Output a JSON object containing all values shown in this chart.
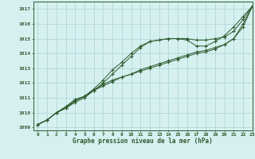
{
  "title": "Graphe pression niveau de la mer (hPa)",
  "xlim": [
    -0.5,
    23
  ],
  "ylim": [
    1008.8,
    1017.5
  ],
  "yticks": [
    1009,
    1010,
    1011,
    1012,
    1013,
    1014,
    1015,
    1016,
    1017
  ],
  "xticks": [
    0,
    1,
    2,
    3,
    4,
    5,
    6,
    7,
    8,
    9,
    10,
    11,
    12,
    13,
    14,
    15,
    16,
    17,
    18,
    19,
    20,
    21,
    22,
    23
  ],
  "bg_color": "#d6f0f0",
  "grid_color": "#b0d8d8",
  "line_color": "#2d5a2d",
  "lines": [
    [
      1009.2,
      1009.5,
      1010.0,
      1010.3,
      1010.8,
      1011.1,
      1011.6,
      1012.2,
      1012.9,
      1013.4,
      1014.0,
      1014.5,
      1014.8,
      1014.9,
      1015.0,
      1015.0,
      1015.0,
      1014.9,
      1014.9,
      1015.0,
      1015.1,
      1015.5,
      1016.3,
      1017.2
    ],
    [
      1009.2,
      1009.5,
      1010.0,
      1010.4,
      1010.8,
      1011.1,
      1011.5,
      1011.8,
      1012.1,
      1012.4,
      1012.6,
      1012.8,
      1013.0,
      1013.2,
      1013.4,
      1013.6,
      1013.8,
      1014.0,
      1014.1,
      1014.3,
      1014.6,
      1015.0,
      1015.8,
      1017.2
    ],
    [
      1009.2,
      1009.5,
      1010.0,
      1010.4,
      1010.9,
      1011.1,
      1011.5,
      1011.9,
      1012.2,
      1012.4,
      1012.6,
      1012.9,
      1013.1,
      1013.3,
      1013.5,
      1013.7,
      1013.9,
      1014.1,
      1014.2,
      1014.4,
      1014.6,
      1015.0,
      1016.0,
      1017.2
    ],
    [
      1009.2,
      1009.5,
      1010.0,
      1010.3,
      1010.7,
      1011.0,
      1011.5,
      1012.0,
      1012.6,
      1013.2,
      1013.8,
      1014.4,
      1014.8,
      1014.9,
      1015.0,
      1015.0,
      1014.9,
      1014.5,
      1014.5,
      1014.8,
      1015.2,
      1015.8,
      1016.5,
      1017.2
    ]
  ]
}
